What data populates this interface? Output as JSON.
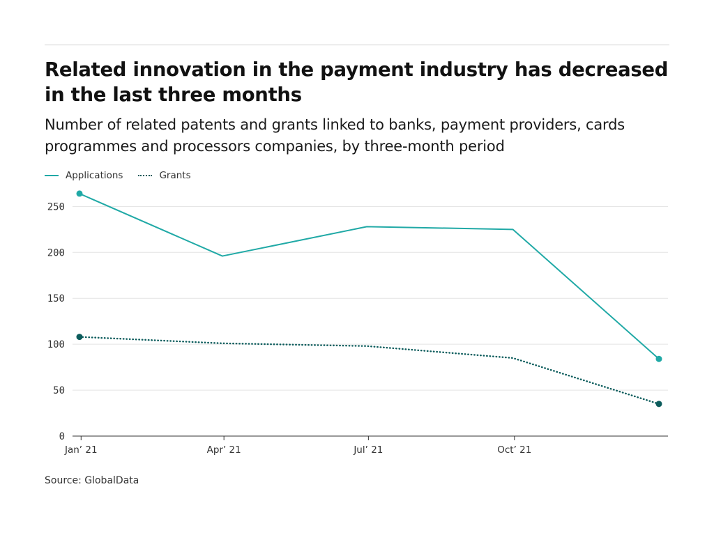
{
  "title": "Related innovation in the payment industry has decreased in the last three months",
  "subtitle": "Number of related patents and grants linked to banks, payment providers, cards programmes and processors companies, by three-month period",
  "source": "Source: GlobalData",
  "colors": {
    "applications": "#20a9a6",
    "grants": "#0c5c5c",
    "grid": "#e3e3e3",
    "axis": "#333333"
  },
  "chart_data": {
    "type": "line",
    "x_tick_labels": [
      "Jan’ 21",
      "Apr’ 21",
      "Jul’ 21",
      "Oct’ 21"
    ],
    "x": [
      "2020-12-31",
      "2021-03-31",
      "2021-06-30",
      "2021-09-30",
      "2021-12-31"
    ],
    "series": [
      {
        "name": "Applications",
        "values": [
          264,
          196,
          228,
          225,
          84
        ],
        "style": "solid",
        "color": "#20a9a6"
      },
      {
        "name": "Grants",
        "values": [
          108,
          101,
          98,
          85,
          35
        ],
        "style": "dotted",
        "color": "#0c5c5c"
      }
    ],
    "y_ticks": [
      0,
      50,
      100,
      150,
      200,
      250
    ],
    "ylim": [
      0,
      270
    ],
    "grid": true,
    "legend_position": "top-left",
    "xlabel": "",
    "ylabel": ""
  }
}
